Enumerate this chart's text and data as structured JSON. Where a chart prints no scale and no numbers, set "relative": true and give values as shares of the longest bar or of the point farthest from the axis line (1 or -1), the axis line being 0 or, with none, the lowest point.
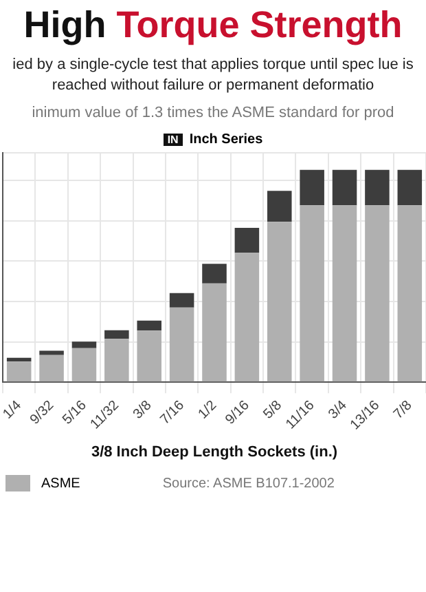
{
  "chart_data": {
    "type": "bar",
    "title": "High Torque Strength",
    "subtitle": "ied by a single-cycle test that applies torque until spec lue is reached without failure or permanent deformatio",
    "xlabel": "3/8 Inch Deep Length Sockets (in.)",
    "annotations": [
      "inimum value of 1.3 times the ASME standard for prod",
      "IN",
      "Inch Series",
      "Source: ASME B107.1-2002"
    ],
    "categories": [
      "1/4",
      "9/32",
      "5/16",
      "11/32",
      "3/8",
      "7/16",
      "1/2",
      "9/16",
      "5/8",
      "11/16",
      "3/4",
      "13/16",
      "7/8"
    ],
    "stacked": true,
    "relative": true,
    "grid": true,
    "legend": "bottom left",
    "series": [
      {
        "name": "ASME",
        "color": "#b0b0b0",
        "values": [
          0.097,
          0.128,
          0.16,
          0.204,
          0.243,
          0.352,
          0.465,
          0.609,
          0.755,
          0.833,
          0.833,
          0.833,
          0.833
        ]
      },
      {
        "color": "#3d3d3d",
        "values": [
          0.018,
          0.02,
          0.031,
          0.041,
          0.047,
          0.068,
          0.092,
          0.118,
          0.146,
          0.167,
          0.167,
          0.167,
          0.167
        ]
      }
    ]
  }
}
